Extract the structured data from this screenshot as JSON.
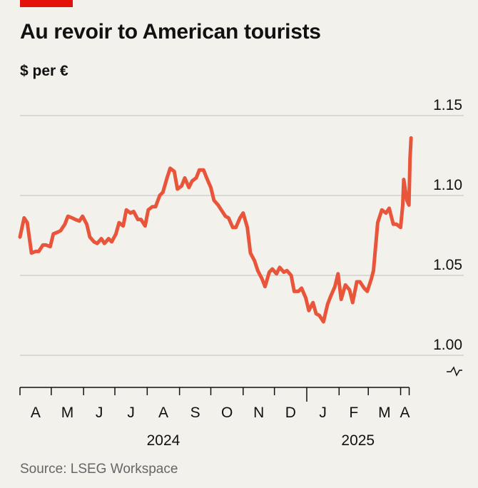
{
  "header": {
    "title": "Au revoir to American tourists",
    "subtitle": "$ per €"
  },
  "footer": {
    "source": "Source: LSEG Workspace"
  },
  "colors": {
    "accent": "#e3120b",
    "line": "#e8553a",
    "grid": "#c9c9c5",
    "background": "#f2f1ec"
  },
  "chart_data": {
    "type": "line",
    "title": "Au revoir to American tourists",
    "ylabel": "$ per €",
    "xlabel": "",
    "ylim": [
      1.0,
      1.15
    ],
    "y_ticks": [
      "1.15",
      "1.10",
      "1.05",
      "1.00"
    ],
    "y_tick_values": [
      1.15,
      1.1,
      1.05,
      1.0
    ],
    "grid": true,
    "month_labels": [
      "A",
      "M",
      "J",
      "J",
      "A",
      "S",
      "O",
      "N",
      "D",
      "J",
      "F",
      "M",
      "A"
    ],
    "year_labels": [
      "2024",
      "2025"
    ],
    "xlim": [
      "2024-04-01",
      "2025-04-15"
    ],
    "month_ticks": [
      "2024-04-01",
      "2024-05-01",
      "2024-06-01",
      "2024-07-01",
      "2024-08-01",
      "2024-09-01",
      "2024-10-01",
      "2024-11-01",
      "2024-12-01",
      "2025-01-01",
      "2025-02-01",
      "2025-03-01",
      "2025-04-01"
    ],
    "series": [
      {
        "x": [
          "2024-04-01",
          "2024-04-05",
          "2024-04-08",
          "2024-04-12",
          "2024-04-16",
          "2024-04-19",
          "2024-04-23",
          "2024-04-26",
          "2024-04-30",
          "2024-05-03",
          "2024-05-07",
          "2024-05-10",
          "2024-05-14",
          "2024-05-17",
          "2024-05-21",
          "2024-05-24",
          "2024-05-28",
          "2024-05-31",
          "2024-06-04",
          "2024-06-07",
          "2024-06-11",
          "2024-06-14",
          "2024-06-18",
          "2024-06-21",
          "2024-06-25",
          "2024-06-28",
          "2024-07-02",
          "2024-07-05",
          "2024-07-09",
          "2024-07-12",
          "2024-07-16",
          "2024-07-19",
          "2024-07-23",
          "2024-07-26",
          "2024-07-30",
          "2024-08-02",
          "2024-08-06",
          "2024-08-09",
          "2024-08-13",
          "2024-08-16",
          "2024-08-20",
          "2024-08-23",
          "2024-08-27",
          "2024-08-30",
          "2024-09-03",
          "2024-09-06",
          "2024-09-10",
          "2024-09-13",
          "2024-09-17",
          "2024-09-20",
          "2024-09-24",
          "2024-09-27",
          "2024-10-01",
          "2024-10-04",
          "2024-10-08",
          "2024-10-11",
          "2024-10-15",
          "2024-10-18",
          "2024-10-22",
          "2024-10-25",
          "2024-10-29",
          "2024-11-01",
          "2024-11-05",
          "2024-11-08",
          "2024-11-12",
          "2024-11-15",
          "2024-11-19",
          "2024-11-22",
          "2024-11-26",
          "2024-11-29",
          "2024-12-03",
          "2024-12-06",
          "2024-12-10",
          "2024-12-13",
          "2024-12-17",
          "2024-12-20",
          "2024-12-24",
          "2024-12-27",
          "2024-12-31",
          "2025-01-03",
          "2025-01-07",
          "2025-01-10",
          "2025-01-13",
          "2025-01-17",
          "2025-01-21",
          "2025-01-24",
          "2025-01-28",
          "2025-01-31",
          "2025-02-03",
          "2025-02-07",
          "2025-02-11",
          "2025-02-14",
          "2025-02-18",
          "2025-02-21",
          "2025-02-25",
          "2025-02-28",
          "2025-03-04",
          "2025-03-06",
          "2025-03-10",
          "2025-03-14",
          "2025-03-18",
          "2025-03-21",
          "2025-03-25",
          "2025-03-28",
          "2025-04-01",
          "2025-04-03",
          "2025-04-04",
          "2025-04-07",
          "2025-04-09",
          "2025-04-10",
          "2025-04-11"
        ],
        "y": [
          1.074,
          1.086,
          1.083,
          1.064,
          1.065,
          1.065,
          1.069,
          1.069,
          1.068,
          1.076,
          1.077,
          1.078,
          1.082,
          1.087,
          1.086,
          1.085,
          1.084,
          1.087,
          1.082,
          1.074,
          1.071,
          1.07,
          1.073,
          1.07,
          1.073,
          1.071,
          1.076,
          1.083,
          1.081,
          1.091,
          1.089,
          1.09,
          1.085,
          1.085,
          1.081,
          1.091,
          1.093,
          1.093,
          1.1,
          1.102,
          1.111,
          1.117,
          1.115,
          1.104,
          1.106,
          1.111,
          1.105,
          1.109,
          1.111,
          1.116,
          1.116,
          1.111,
          1.105,
          1.097,
          1.094,
          1.091,
          1.087,
          1.086,
          1.08,
          1.08,
          1.086,
          1.089,
          1.08,
          1.064,
          1.059,
          1.053,
          1.048,
          1.043,
          1.052,
          1.054,
          1.051,
          1.055,
          1.052,
          1.053,
          1.05,
          1.04,
          1.04,
          1.042,
          1.036,
          1.028,
          1.033,
          1.026,
          1.025,
          1.021,
          1.032,
          1.037,
          1.043,
          1.051,
          1.035,
          1.044,
          1.041,
          1.033,
          1.046,
          1.046,
          1.042,
          1.04,
          1.048,
          1.053,
          1.083,
          1.091,
          1.089,
          1.092,
          1.082,
          1.082,
          1.08,
          1.094,
          1.11,
          1.097,
          1.094,
          1.123,
          1.136
        ]
      }
    ]
  }
}
